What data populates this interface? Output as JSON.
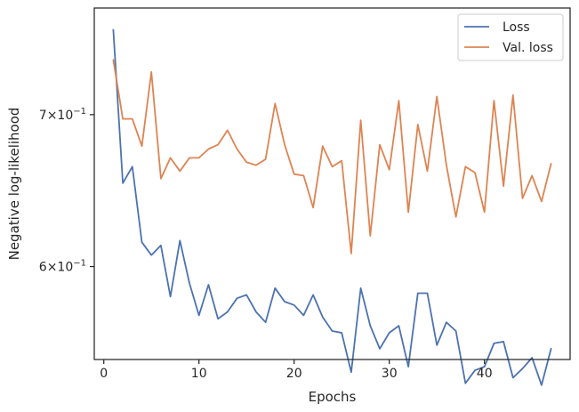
{
  "chart_data": {
    "type": "line",
    "xlabel": "Epochs",
    "ylabel": "Negative log-likelihood",
    "yscale": "log",
    "xlim": [
      -1,
      49
    ],
    "ylim": [
      0.546,
      0.78
    ],
    "x_ticks": [
      {
        "value": 0,
        "label": "0"
      },
      {
        "value": 10,
        "label": "10"
      },
      {
        "value": 20,
        "label": "20"
      },
      {
        "value": 30,
        "label": "30"
      },
      {
        "value": 40,
        "label": "40"
      }
    ],
    "y_ticks": [
      {
        "value": 0.6,
        "base": "6",
        "exp": "−1"
      },
      {
        "value": 0.7,
        "base": "7",
        "exp": "−1"
      }
    ],
    "grid": false,
    "legend": {
      "position": "top-right"
    },
    "x": [
      1,
      2,
      3,
      4,
      5,
      6,
      7,
      8,
      9,
      10,
      11,
      12,
      13,
      14,
      15,
      16,
      17,
      18,
      19,
      20,
      21,
      22,
      23,
      24,
      25,
      26,
      27,
      28,
      29,
      30,
      31,
      32,
      33,
      34,
      35,
      36,
      37,
      38,
      39,
      40,
      41,
      42,
      43,
      44,
      45,
      46,
      47
    ],
    "series": [
      {
        "name": "Loss",
        "color": "#4c72b0",
        "values": [
          0.763,
          0.653,
          0.664,
          0.615,
          0.607,
          0.613,
          0.582,
          0.616,
          0.59,
          0.571,
          0.589,
          0.569,
          0.573,
          0.581,
          0.583,
          0.573,
          0.567,
          0.587,
          0.579,
          0.577,
          0.571,
          0.583,
          0.57,
          0.562,
          0.561,
          0.539,
          0.587,
          0.565,
          0.552,
          0.561,
          0.565,
          0.542,
          0.584,
          0.584,
          0.554,
          0.567,
          0.562,
          0.533,
          0.54,
          0.542,
          0.555,
          0.556,
          0.536,
          0.541,
          0.547,
          0.532,
          0.552
        ]
      },
      {
        "name": "Val. loss",
        "color": "#dd8452",
        "values": [
          0.74,
          0.697,
          0.697,
          0.678,
          0.731,
          0.656,
          0.67,
          0.661,
          0.67,
          0.67,
          0.676,
          0.679,
          0.689,
          0.676,
          0.667,
          0.665,
          0.669,
          0.708,
          0.679,
          0.659,
          0.658,
          0.637,
          0.678,
          0.664,
          0.668,
          0.608,
          0.696,
          0.619,
          0.679,
          0.662,
          0.71,
          0.634,
          0.693,
          0.661,
          0.713,
          0.665,
          0.631,
          0.664,
          0.66,
          0.634,
          0.71,
          0.651,
          0.714,
          0.643,
          0.658,
          0.641,
          0.666
        ]
      }
    ]
  }
}
